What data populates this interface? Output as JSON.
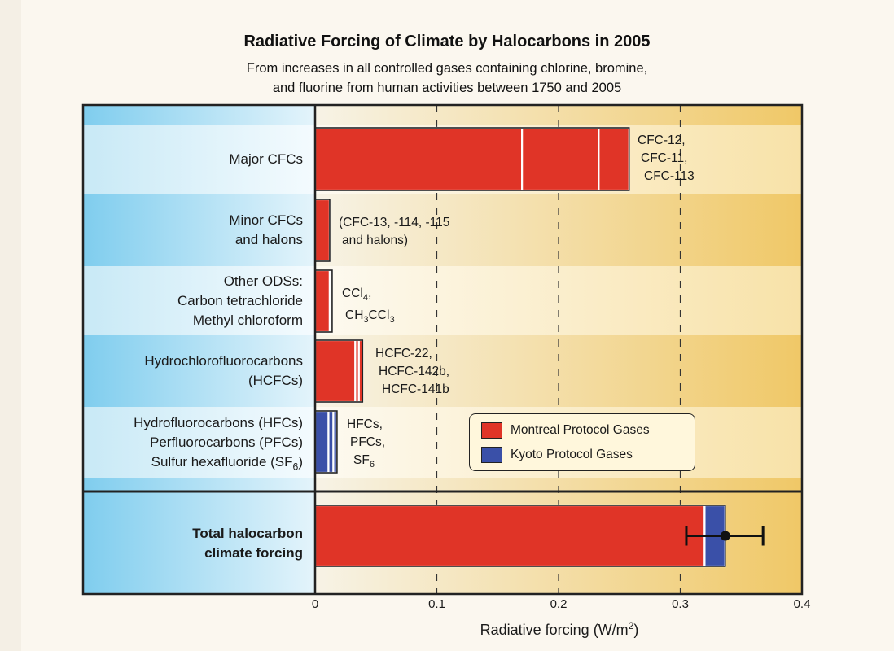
{
  "title": "Radiative Forcing of Climate by Halocarbons in 2005",
  "subtitle_line1": "From increases in all controlled gases containing chlorine, bromine,",
  "subtitle_line2": "and fluorine from human activities between 1750 and 2005",
  "colors": {
    "montreal": "#e03427",
    "kyoto": "#3a50a8"
  },
  "chart_data": {
    "type": "bar",
    "orientation": "horizontal",
    "stacked": true,
    "title": "Radiative Forcing of Climate by Halocarbons in 2005",
    "xlabel": "Radiative forcing (W/m²)",
    "xlim": [
      0,
      0.4
    ],
    "xticks": [
      "0",
      "0.1",
      "0.2",
      "0.3",
      "0.4"
    ],
    "grid": "vertical dashed at 0.1, 0.2, 0.3",
    "legend_position": "lower-right",
    "legend": [
      {
        "name": "Montreal Protocol Gases",
        "color": "#e03427"
      },
      {
        "name": "Kyoto Protocol Gases",
        "color": "#3a50a8"
      }
    ],
    "categories": [
      {
        "label": [
          "Major CFCs"
        ],
        "annotation": [
          "CFC-12,",
          "CFC-11,",
          "CFC-113"
        ],
        "segments": [
          {
            "name": "CFC-12",
            "group": "montreal",
            "value": 0.17
          },
          {
            "name": "CFC-11",
            "group": "montreal",
            "value": 0.063
          },
          {
            "name": "CFC-113",
            "group": "montreal",
            "value": 0.025
          }
        ]
      },
      {
        "label": [
          "Minor CFCs",
          "and halons"
        ],
        "annotation": [
          "(CFC-13, -114, -115",
          "and halons)"
        ],
        "segments": [
          {
            "name": "Minor CFCs and halons",
            "group": "montreal",
            "value": 0.012
          }
        ]
      },
      {
        "label": [
          "Other ODSs:",
          "Carbon tetrachloride",
          "Methyl chloroform"
        ],
        "annotation": [
          "CCl₄,",
          "CH₃CCl₃"
        ],
        "segments": [
          {
            "name": "CCl4",
            "group": "montreal",
            "value": 0.012
          },
          {
            "name": "CH3CCl3",
            "group": "montreal",
            "value": 0.002
          }
        ]
      },
      {
        "label": [
          "Hydrochlorofluorocarbons",
          "(HCFCs)"
        ],
        "annotation": [
          "HCFC-22,",
          "HCFC-142b,",
          "HCFC-141b"
        ],
        "segments": [
          {
            "name": "HCFC-22",
            "group": "montreal",
            "value": 0.033
          },
          {
            "name": "HCFC-142b",
            "group": "montreal",
            "value": 0.003
          },
          {
            "name": "HCFC-141b",
            "group": "montreal",
            "value": 0.003
          }
        ]
      },
      {
        "label": [
          "Hydrofluorocarbons (HFCs)",
          "Perfluorocarbons (PFCs)",
          "Sulfur hexafluoride (SF₆)"
        ],
        "annotation": [
          "HFCs,",
          "PFCs,",
          "SF₆"
        ],
        "segments": [
          {
            "name": "HFCs",
            "group": "kyoto",
            "value": 0.011
          },
          {
            "name": "PFCs",
            "group": "kyoto",
            "value": 0.004
          },
          {
            "name": "SF6",
            "group": "kyoto",
            "value": 0.003
          }
        ]
      },
      {
        "label": [
          "Total halocarbon",
          "climate forcing"
        ],
        "bold": true,
        "annotation": [],
        "segments": [
          {
            "name": "Montreal Protocol Gases",
            "group": "montreal",
            "value": 0.32
          },
          {
            "name": "Kyoto Protocol Gases",
            "group": "kyoto",
            "value": 0.017
          }
        ],
        "error_bar": {
          "center": 0.337,
          "low": 0.305,
          "high": 0.368
        }
      }
    ]
  }
}
